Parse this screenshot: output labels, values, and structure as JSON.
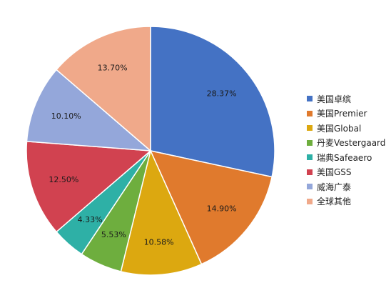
{
  "chart_data": {
    "type": "pie",
    "title": "",
    "legend_position": "right",
    "start_angle_deg": 0,
    "direction": "clockwise",
    "slices": [
      {
        "name": "美国卓缤",
        "label": "28.37%",
        "value": 28.37,
        "color": "#4472C4"
      },
      {
        "name": "美国Premier",
        "label": "14.90%",
        "value": 14.9,
        "color": "#E07A2D"
      },
      {
        "name": "美国Global",
        "label": "10.58%",
        "value": 10.58,
        "color": "#DCA810"
      },
      {
        "name": "丹麦Vestergaard",
        "label": "5.53%",
        "value": 5.53,
        "color": "#6EAE3E"
      },
      {
        "name": "瑞典Safeaero",
        "label": "4.33%",
        "value": 4.33,
        "color": "#2EB0A6"
      },
      {
        "name": "美国GSS",
        "label": "12.50%",
        "value": 12.5,
        "color": "#D14250"
      },
      {
        "name": "威海广泰",
        "label": "10.10%",
        "value": 10.1,
        "color": "#94A7DA"
      },
      {
        "name": "全球其他",
        "label": "13.70%",
        "value": 13.7,
        "color": "#F0A98A"
      }
    ]
  }
}
